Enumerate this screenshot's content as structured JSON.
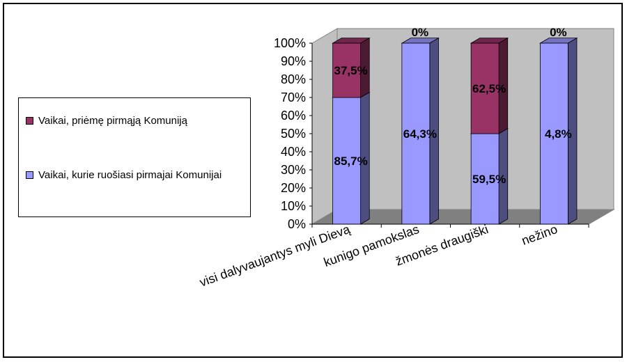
{
  "chart_data": {
    "type": "bar",
    "stacked": true,
    "three_d": true,
    "categories": [
      "visi dalyvaujantys myli Dievą",
      "kunigo pamokslas",
      "žmonės draugiški",
      "nežino"
    ],
    "series": [
      {
        "name": "Vaikai, kurie ruošiasi pirmajai Komunijai",
        "color": "#9999ff",
        "values": [
          70,
          100,
          50,
          100
        ],
        "labels": [
          "85,7%",
          "64,3%",
          "59,5%",
          "4,8%"
        ]
      },
      {
        "name": "Vaikai, priėmę pirmąją Komuniją",
        "color": "#993366",
        "values": [
          30,
          0,
          50,
          0
        ],
        "labels": [
          "37,5%",
          "0%",
          "62,5%",
          "0%"
        ]
      }
    ],
    "yticks": [
      "0%",
      "10%",
      "20%",
      "30%",
      "40%",
      "50%",
      "60%",
      "70%",
      "80%",
      "90%",
      "100%"
    ],
    "ylim": [
      0,
      100
    ],
    "legend_position": "left",
    "wall_color": "#c0c0c0",
    "floor_color": "#808080"
  }
}
